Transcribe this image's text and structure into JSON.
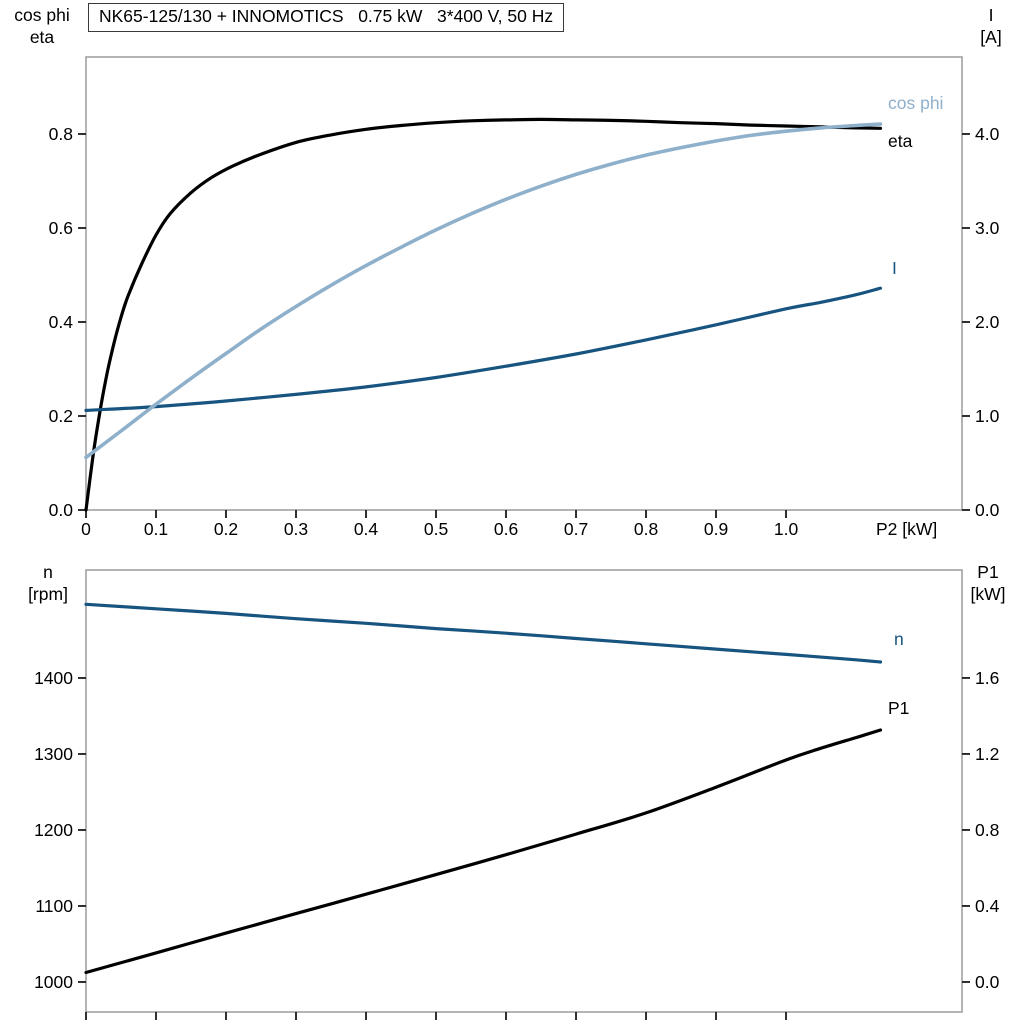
{
  "title_box": "NK65-125/130 + INNOMOTICS   0.75 kW   3*400 V, 50 Hz",
  "colors": {
    "frame": "#9b9b9b",
    "tick": "#1a1a1a",
    "black_curve": "#000000",
    "light_blue_curve": "#8fb0cb",
    "dark_blue_curve": "#175480"
  },
  "chart_data": [
    {
      "type": "line",
      "title": "NK65-125/130 + INNOMOTICS 0.75 kW 3*400 V, 50 Hz",
      "x_axis": {
        "label": "P2 [kW]",
        "min": 0,
        "max": 1.2514,
        "ticks": [
          0,
          0.1,
          0.2,
          0.3,
          0.4,
          0.5,
          0.6,
          0.7,
          0.8,
          0.9,
          1.0
        ],
        "tick_labels": [
          "0",
          "0.1",
          "0.2",
          "0.3",
          "0.4",
          "0.5",
          "0.6",
          "0.7",
          "0.8",
          "0.9",
          "1.0"
        ]
      },
      "left_axis": {
        "label_lines": [
          "cos phi",
          "eta"
        ],
        "min": 0,
        "max": 0.9638,
        "ticks": [
          0,
          0.2,
          0.4,
          0.6,
          0.8
        ],
        "tick_labels": [
          "0.0",
          "0.2",
          "0.4",
          "0.6",
          "0.8"
        ]
      },
      "right_axis": {
        "label_lines": [
          "I",
          "[A]"
        ],
        "min": 0,
        "max": 4.819,
        "ticks": [
          0,
          1,
          2,
          3,
          4
        ],
        "tick_labels": [
          "0.0",
          "1.0",
          "2.0",
          "3.0",
          "4.0"
        ]
      },
      "series": [
        {
          "name": "eta",
          "axis": "left",
          "color": "#000000",
          "x": [
            0,
            0.01,
            0.02,
            0.03,
            0.04,
            0.05,
            0.06,
            0.08,
            0.1,
            0.12,
            0.15,
            0.18,
            0.21,
            0.25,
            0.3,
            0.35,
            0.4,
            0.45,
            0.5,
            0.55,
            0.6,
            0.65,
            0.7,
            0.75,
            0.8,
            0.85,
            0.9,
            0.95,
            1.0,
            1.05,
            1.1,
            1.135
          ],
          "y": [
            0,
            0.115,
            0.21,
            0.29,
            0.355,
            0.41,
            0.455,
            0.525,
            0.585,
            0.63,
            0.675,
            0.708,
            0.732,
            0.757,
            0.782,
            0.798,
            0.81,
            0.818,
            0.824,
            0.828,
            0.83,
            0.831,
            0.83,
            0.829,
            0.827,
            0.824,
            0.822,
            0.819,
            0.817,
            0.815,
            0.813,
            0.812
          ]
        },
        {
          "name": "I",
          "axis": "right",
          "color": "#175480",
          "x": [
            0,
            0.1,
            0.2,
            0.3,
            0.4,
            0.5,
            0.6,
            0.7,
            0.8,
            0.9,
            1.0,
            1.05,
            1.1,
            1.135
          ],
          "y": [
            1.06,
            1.1,
            1.16,
            1.23,
            1.31,
            1.41,
            1.53,
            1.66,
            1.81,
            1.97,
            2.14,
            2.21,
            2.29,
            2.36
          ]
        },
        {
          "name": "cos phi",
          "axis": "left",
          "color": "#8fb0cb",
          "x": [
            0,
            0.05,
            0.1,
            0.15,
            0.2,
            0.25,
            0.3,
            0.35,
            0.4,
            0.45,
            0.5,
            0.55,
            0.6,
            0.65,
            0.7,
            0.75,
            0.8,
            0.85,
            0.9,
            0.95,
            1.0,
            1.05,
            1.1,
            1.135
          ],
          "y": [
            0.112,
            0.168,
            0.225,
            0.28,
            0.333,
            0.385,
            0.433,
            0.478,
            0.52,
            0.559,
            0.596,
            0.63,
            0.661,
            0.689,
            0.714,
            0.736,
            0.755,
            0.771,
            0.785,
            0.797,
            0.806,
            0.813,
            0.818,
            0.821
          ]
        }
      ]
    },
    {
      "type": "line",
      "title": "",
      "x_axis": {
        "label": "",
        "min": 0,
        "max": 1.2514,
        "ticks": [
          0,
          0.1,
          0.2,
          0.3,
          0.4,
          0.5,
          0.6,
          0.7,
          0.8,
          0.9,
          1.0
        ],
        "tick_labels": []
      },
      "left_axis": {
        "label_lines": [
          "n",
          "[rpm]"
        ],
        "min": 960.5,
        "max": 1542.1,
        "ticks": [
          1000,
          1100,
          1200,
          1300,
          1400
        ],
        "tick_labels": [
          "1000",
          "1100",
          "1200",
          "1300",
          "1400"
        ]
      },
      "right_axis": {
        "label_lines": [
          "P1",
          "[kW]"
        ],
        "min": -0.158,
        "max": 2.168,
        "ticks": [
          0,
          0.4,
          0.8,
          1.2,
          1.6
        ],
        "tick_labels": [
          "0.0",
          "0.4",
          "0.8",
          "1.2",
          "1.6"
        ]
      },
      "series": [
        {
          "name": "n",
          "axis": "left",
          "color": "#175480",
          "x": [
            0,
            0.1,
            0.2,
            0.3,
            0.4,
            0.5,
            0.6,
            0.7,
            0.8,
            0.9,
            1.0,
            1.1,
            1.135
          ],
          "y": [
            1497,
            1491,
            1485,
            1478,
            1472,
            1465,
            1459,
            1452,
            1445,
            1438,
            1431,
            1424,
            1421
          ]
        },
        {
          "name": "P1",
          "axis": "right",
          "color": "#000000",
          "x": [
            0,
            0.1,
            0.2,
            0.3,
            0.4,
            0.5,
            0.6,
            0.7,
            0.8,
            0.9,
            1.0,
            1.05,
            1.1,
            1.135
          ],
          "y": [
            0.05,
            0.153,
            0.257,
            0.36,
            0.462,
            0.565,
            0.67,
            0.778,
            0.89,
            1.025,
            1.168,
            1.23,
            1.286,
            1.326
          ]
        }
      ]
    }
  ]
}
